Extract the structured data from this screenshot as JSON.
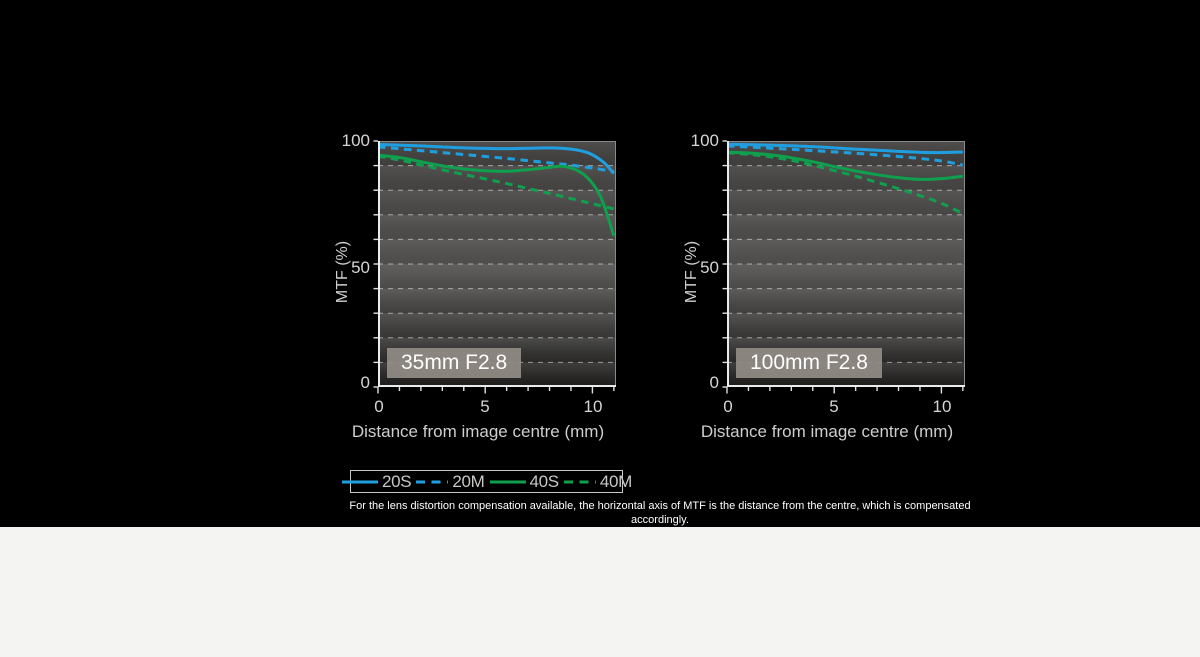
{
  "page": {
    "background_color": "#000000",
    "footer_background_color": "#f4f4f3",
    "accent_blue": "#1f9fdf",
    "accent_green": "#0fa04e"
  },
  "footnote": "For the lens distortion compensation available, the horizontal axis of MTF is the distance from the centre, which is compensated accordingly.",
  "legend": {
    "items": [
      {
        "label": "20S",
        "color": "#1f9fdf",
        "style": "solid"
      },
      {
        "label": "20M",
        "color": "#1f9fdf",
        "style": "dashed"
      },
      {
        "label": "40S",
        "color": "#0fa04e",
        "style": "solid"
      },
      {
        "label": "40M",
        "color": "#0fa04e",
        "style": "dashed"
      }
    ]
  },
  "chart_data": [
    {
      "type": "line",
      "title": "35mm F2.8",
      "xlabel": "Distance from image centre (mm)",
      "ylabel": "MTF (%)",
      "xlim": [
        0,
        11.1
      ],
      "ylim": [
        0,
        100
      ],
      "xticks": [
        0,
        5,
        10
      ],
      "xtick_labels": [
        "0",
        "5",
        "10"
      ],
      "yticks": [
        0,
        50,
        100
      ],
      "ytick_labels": [
        "0",
        "50",
        "100"
      ],
      "gridlines_y": [
        10,
        20,
        30,
        40,
        50,
        60,
        70,
        80,
        90
      ],
      "grid": true,
      "legend_position": "below",
      "series": [
        {
          "name": "20S",
          "color": "#1f9fdf",
          "style": "solid",
          "points": [
            [
              0,
              98.6
            ],
            [
              2,
              98.0
            ],
            [
              4,
              97.2
            ],
            [
              6,
              96.9
            ],
            [
              8,
              97.2
            ],
            [
              9,
              96.7
            ],
            [
              9.8,
              95.2
            ],
            [
              10.5,
              91.5
            ],
            [
              11,
              86.8
            ]
          ]
        },
        {
          "name": "20M",
          "color": "#1f9fdf",
          "style": "dashed",
          "points": [
            [
              0,
              97.6
            ],
            [
              2,
              96.1
            ],
            [
              4,
              94.5
            ],
            [
              6,
              92.9
            ],
            [
              8,
              91.1
            ],
            [
              9,
              90.2
            ],
            [
              10,
              89.0
            ],
            [
              11,
              87.6
            ]
          ]
        },
        {
          "name": "40S",
          "color": "#0fa04e",
          "style": "solid",
          "points": [
            [
              0,
              94.2
            ],
            [
              1,
              93.3
            ],
            [
              2,
              91.6
            ],
            [
              3,
              89.9
            ],
            [
              4,
              88.6
            ],
            [
              5,
              87.9
            ],
            [
              6,
              87.7
            ],
            [
              7,
              88.3
            ],
            [
              8,
              89.3
            ],
            [
              8.6,
              89.7
            ],
            [
              9.2,
              88.4
            ],
            [
              9.8,
              84.8
            ],
            [
              10.4,
              77.0
            ],
            [
              11,
              61.5
            ]
          ]
        },
        {
          "name": "40M",
          "color": "#0fa04e",
          "style": "dashed",
          "points": [
            [
              0,
              93.8
            ],
            [
              1,
              92.3
            ],
            [
              2,
              90.3
            ],
            [
              3,
              88.3
            ],
            [
              4,
              86.4
            ],
            [
              5,
              84.6
            ],
            [
              6,
              82.7
            ],
            [
              7,
              80.7
            ],
            [
              8,
              78.7
            ],
            [
              9,
              76.6
            ],
            [
              10,
              74.5
            ],
            [
              11,
              72.4
            ]
          ]
        }
      ]
    },
    {
      "type": "line",
      "title": "100mm F2.8",
      "xlabel": "Distance from image centre (mm)",
      "ylabel": "MTF (%)",
      "xlim": [
        0,
        11.1
      ],
      "ylim": [
        0,
        100
      ],
      "xticks": [
        0,
        5,
        10
      ],
      "xtick_labels": [
        "0",
        "5",
        "10"
      ],
      "yticks": [
        0,
        50,
        100
      ],
      "ytick_labels": [
        "0",
        "50",
        "100"
      ],
      "gridlines_y": [
        10,
        20,
        30,
        40,
        50,
        60,
        70,
        80,
        90
      ],
      "grid": true,
      "legend_position": "below",
      "series": [
        {
          "name": "20S",
          "color": "#1f9fdf",
          "style": "solid",
          "points": [
            [
              0,
              98.7
            ],
            [
              2,
              98.3
            ],
            [
              4,
              97.7
            ],
            [
              6,
              96.7
            ],
            [
              8,
              95.8
            ],
            [
              9,
              95.4
            ],
            [
              10,
              95.3
            ],
            [
              11,
              95.5
            ]
          ]
        },
        {
          "name": "20M",
          "color": "#1f9fdf",
          "style": "dashed",
          "points": [
            [
              0,
              98.0
            ],
            [
              2,
              97.1
            ],
            [
              4,
              96.1
            ],
            [
              6,
              95.0
            ],
            [
              8,
              93.7
            ],
            [
              9,
              92.9
            ],
            [
              10,
              91.9
            ],
            [
              11,
              90.2
            ]
          ]
        },
        {
          "name": "40S",
          "color": "#0fa04e",
          "style": "solid",
          "points": [
            [
              0,
              95.4
            ],
            [
              1,
              95.1
            ],
            [
              2,
              94.4
            ],
            [
              3,
              93.2
            ],
            [
              4,
              91.6
            ],
            [
              5,
              89.6
            ],
            [
              6,
              87.8
            ],
            [
              7,
              86.3
            ],
            [
              8,
              85.1
            ],
            [
              9,
              84.4
            ],
            [
              10,
              84.7
            ],
            [
              11,
              85.7
            ]
          ]
        },
        {
          "name": "40M",
          "color": "#0fa04e",
          "style": "dashed",
          "points": [
            [
              0,
              95.2
            ],
            [
              1,
              94.6
            ],
            [
              2,
              93.6
            ],
            [
              3,
              92.1
            ],
            [
              4,
              90.2
            ],
            [
              5,
              88.0
            ],
            [
              6,
              85.7
            ],
            [
              7,
              83.2
            ],
            [
              8,
              80.6
            ],
            [
              9,
              77.8
            ],
            [
              10,
              74.7
            ],
            [
              11,
              70.5
            ]
          ]
        }
      ]
    }
  ]
}
